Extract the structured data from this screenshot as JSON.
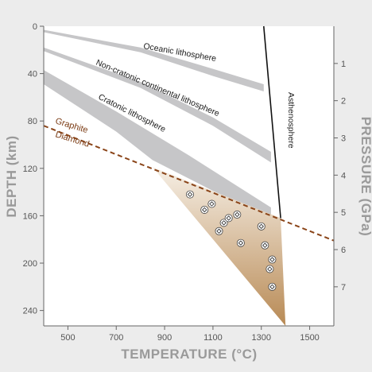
{
  "chart_data": {
    "type": "line",
    "title": "",
    "xlabel": "TEMPERATURE (°C)",
    "ylabel": "DEPTH (km)",
    "y2label": "PRESSURE (GPa)",
    "xlim": [
      400,
      1600
    ],
    "ylim": [
      0,
      253
    ],
    "y2lim": [
      0,
      8.05
    ],
    "x_ticks": [
      500,
      700,
      900,
      1100,
      1300,
      1500
    ],
    "y_ticks": [
      0,
      40,
      80,
      120,
      160,
      200,
      240
    ],
    "y2_ticks": [
      1,
      2,
      3,
      4,
      5,
      6,
      7
    ],
    "grid": false,
    "colors": {
      "background": "#ececec",
      "plot_area": "#ffffff",
      "geotherm_band": "#c6c6c8",
      "graphite_diamond": "#8a4418",
      "diamond_field_top": "#f6efe5",
      "diamond_field_bottom": "#b88a55",
      "asthenosphere_line": "#111111"
    },
    "bands": [
      {
        "name": "Oceanic lithosphere",
        "upper": [
          [
            400,
            3
          ],
          [
            800,
            18
          ],
          [
            1100,
            36
          ],
          [
            1310,
            49
          ]
        ],
        "lower": [
          [
            400,
            5
          ],
          [
            800,
            22
          ],
          [
            1100,
            42
          ],
          [
            1310,
            55
          ]
        ]
      },
      {
        "name": "Non-cratonic continental lithosphere",
        "upper": [
          [
            400,
            18
          ],
          [
            800,
            47
          ],
          [
            1100,
            77
          ],
          [
            1340,
            106
          ]
        ],
        "lower": [
          [
            400,
            21
          ],
          [
            800,
            52
          ],
          [
            1100,
            84
          ],
          [
            1340,
            115
          ]
        ]
      },
      {
        "name": "Cratonic lithosphere",
        "upper": [
          [
            400,
            37
          ],
          [
            700,
            72
          ],
          [
            1000,
            109
          ],
          [
            1340,
            153
          ]
        ],
        "lower": [
          [
            400,
            49
          ],
          [
            700,
            89
          ],
          [
            850,
            113
          ],
          [
            1100,
            139
          ],
          [
            1340,
            161
          ]
        ]
      }
    ],
    "asthenosphere_line": [
      [
        1310,
        0
      ],
      [
        1380,
        162
      ]
    ],
    "asthenosphere_label": "Asthenosphere",
    "graphite_diamond_line": [
      [
        400,
        84
      ],
      [
        1600,
        181
      ]
    ],
    "graphite_label": "Graphite",
    "diamond_label": "Diamond",
    "diamond_field": [
      [
        850,
        119
      ],
      [
        1380,
        162
      ],
      [
        1400,
        253
      ]
    ],
    "diamond_points": [
      [
        1005,
        142
      ],
      [
        1065,
        155
      ],
      [
        1095,
        150
      ],
      [
        1125,
        173
      ],
      [
        1145,
        166
      ],
      [
        1165,
        162
      ],
      [
        1200,
        159
      ],
      [
        1215,
        183
      ],
      [
        1300,
        169
      ],
      [
        1315,
        185
      ],
      [
        1345,
        197
      ],
      [
        1335,
        205
      ],
      [
        1345,
        220
      ]
    ]
  }
}
